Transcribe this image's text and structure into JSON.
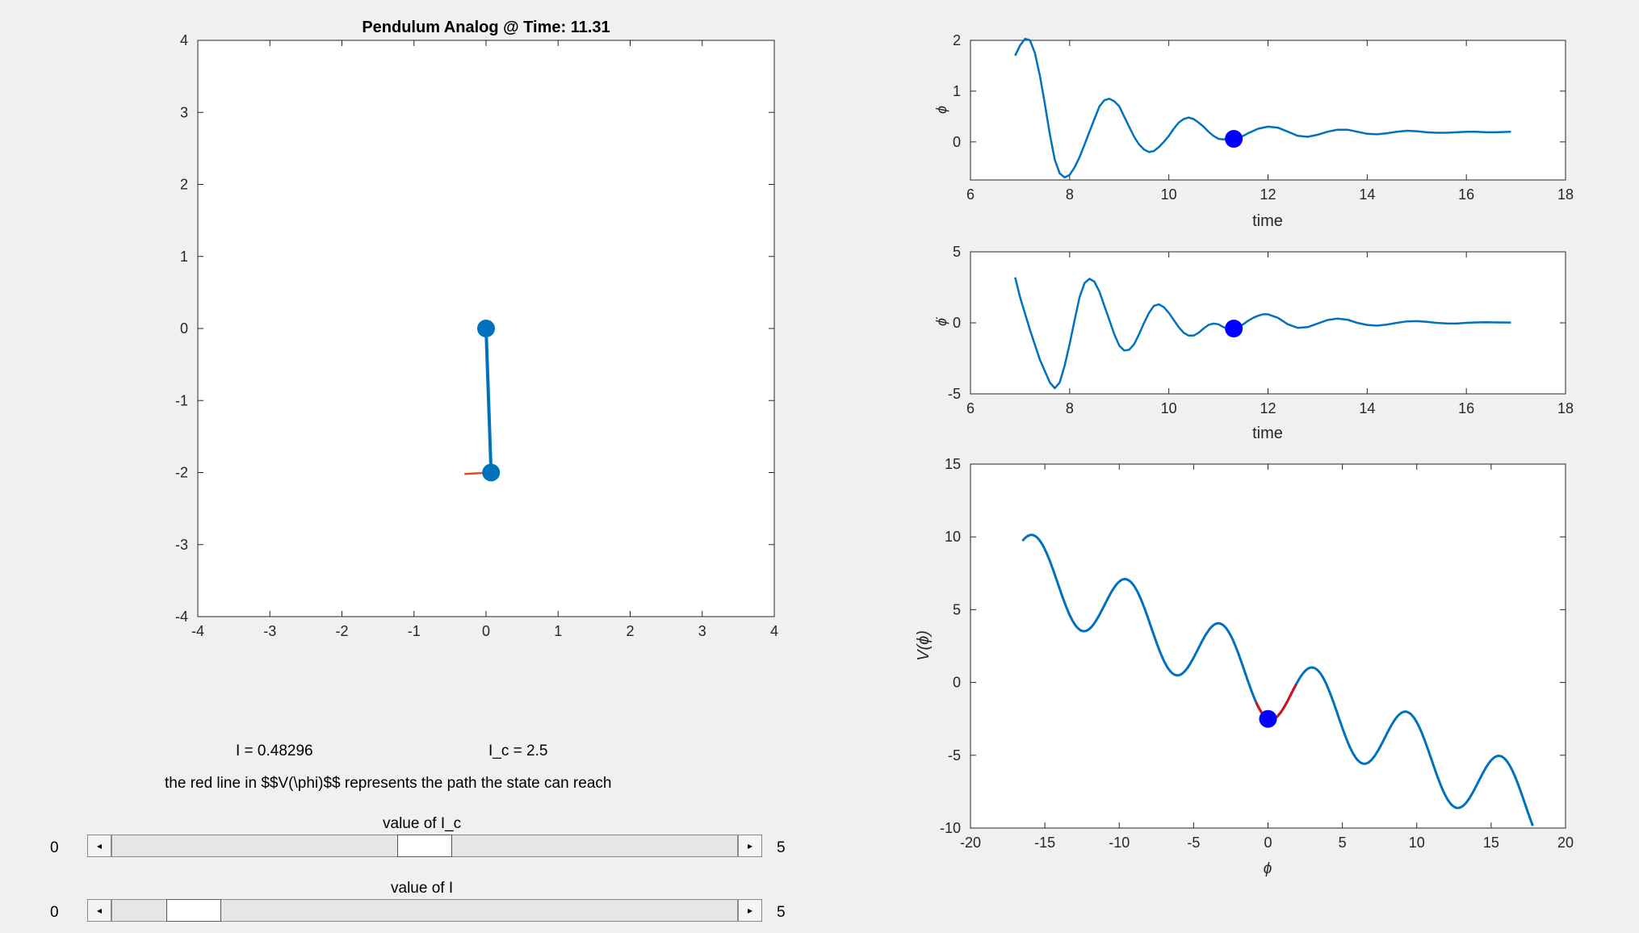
{
  "chart_data": [
    {
      "type": "line",
      "title": "Pendulum Analog @ Time: 11.31",
      "xlabel": "",
      "ylabel": "",
      "xlim": [
        -4,
        4
      ],
      "ylim": [
        -4,
        4
      ],
      "xticks": [
        -4,
        -3,
        -2,
        -1,
        0,
        1,
        2,
        3,
        4
      ],
      "yticks": [
        -4,
        -3,
        -2,
        -1,
        0,
        1,
        2,
        3,
        4
      ],
      "pivot": [
        0,
        0
      ],
      "bob": [
        0.07,
        -2.0
      ],
      "force_line": [
        [
          -0.3,
          -2.02
        ],
        [
          0.07,
          -2.0
        ]
      ],
      "colors": {
        "rod": "#0072bd",
        "force": "#d95319"
      }
    },
    {
      "type": "line",
      "xlabel": "time",
      "ylabel": "ϕ",
      "xlim": [
        6,
        18
      ],
      "ylim": [
        -0.75,
        2
      ],
      "xticks": [
        6,
        8,
        10,
        12,
        14,
        16,
        18
      ],
      "yticks": [
        0,
        1,
        2
      ],
      "series": [
        {
          "x": [
            6.9,
            7.0,
            7.1,
            7.2,
            7.3,
            7.4,
            7.5,
            7.6,
            7.7,
            7.8,
            7.9,
            8.0,
            8.1,
            8.2,
            8.3,
            8.4,
            8.5,
            8.6,
            8.7,
            8.8,
            8.9,
            9.0,
            9.1,
            9.2,
            9.3,
            9.4,
            9.5,
            9.6,
            9.7,
            9.8,
            9.9,
            10.0,
            10.1,
            10.2,
            10.3,
            10.4,
            10.5,
            10.6,
            10.7,
            10.8,
            10.9,
            11.0,
            11.1,
            11.2,
            11.3,
            11.4,
            11.5,
            11.6,
            11.8,
            12.0,
            12.2,
            12.4,
            12.6,
            12.8,
            13.0,
            13.2,
            13.4,
            13.6,
            13.8,
            14.0,
            14.2,
            14.4,
            14.6,
            14.8,
            15.0,
            15.2,
            15.4,
            15.6,
            15.8,
            16.0,
            16.2,
            16.4,
            16.6,
            16.9
          ],
          "values": [
            1.7,
            1.9,
            2.03,
            2.0,
            1.75,
            1.3,
            0.75,
            0.15,
            -0.35,
            -0.62,
            -0.7,
            -0.65,
            -0.5,
            -0.3,
            -0.05,
            0.2,
            0.45,
            0.7,
            0.82,
            0.85,
            0.8,
            0.7,
            0.5,
            0.3,
            0.1,
            -0.05,
            -0.15,
            -0.2,
            -0.18,
            -0.1,
            0.0,
            0.12,
            0.26,
            0.38,
            0.45,
            0.48,
            0.45,
            0.38,
            0.3,
            0.2,
            0.12,
            0.06,
            0.05,
            0.06,
            0.06,
            0.08,
            0.12,
            0.17,
            0.26,
            0.3,
            0.28,
            0.2,
            0.12,
            0.1,
            0.14,
            0.2,
            0.24,
            0.24,
            0.2,
            0.16,
            0.15,
            0.17,
            0.2,
            0.22,
            0.21,
            0.19,
            0.18,
            0.18,
            0.19,
            0.2,
            0.2,
            0.19,
            0.19,
            0.2
          ],
          "color": "#0072bd"
        }
      ],
      "marker": {
        "x": 11.31,
        "y": 0.06,
        "color": "#0000ff"
      }
    },
    {
      "type": "line",
      "xlabel": "time",
      "ylabel": "ϕ̇",
      "xlim": [
        6,
        18
      ],
      "ylim": [
        -5,
        5
      ],
      "xticks": [
        6,
        8,
        10,
        12,
        14,
        16,
        18
      ],
      "yticks": [
        -5,
        0,
        5
      ],
      "series": [
        {
          "x": [
            6.9,
            7.0,
            7.2,
            7.4,
            7.6,
            7.7,
            7.8,
            7.9,
            8.0,
            8.1,
            8.2,
            8.3,
            8.4,
            8.5,
            8.6,
            8.7,
            8.8,
            8.9,
            9.0,
            9.1,
            9.2,
            9.3,
            9.4,
            9.5,
            9.6,
            9.7,
            9.8,
            9.9,
            10.0,
            10.1,
            10.2,
            10.3,
            10.4,
            10.5,
            10.6,
            10.7,
            10.8,
            10.9,
            11.0,
            11.1,
            11.2,
            11.3,
            11.4,
            11.5,
            11.6,
            11.7,
            11.8,
            11.9,
            12.0,
            12.2,
            12.4,
            12.6,
            12.8,
            13.0,
            13.2,
            13.4,
            13.6,
            13.8,
            14.0,
            14.2,
            14.4,
            14.6,
            14.8,
            15.0,
            15.2,
            15.4,
            15.6,
            15.8,
            16.0,
            16.2,
            16.4,
            16.6,
            16.9
          ],
          "values": [
            3.2,
            1.8,
            -0.5,
            -2.6,
            -4.2,
            -4.6,
            -4.2,
            -3.0,
            -1.5,
            0.2,
            1.8,
            2.8,
            3.1,
            2.9,
            2.2,
            1.2,
            0.2,
            -0.8,
            -1.6,
            -1.95,
            -1.9,
            -1.5,
            -0.8,
            0.0,
            0.7,
            1.2,
            1.3,
            1.1,
            0.7,
            0.2,
            -0.3,
            -0.7,
            -0.9,
            -0.9,
            -0.7,
            -0.4,
            -0.15,
            -0.05,
            -0.1,
            -0.3,
            -0.4,
            -0.4,
            -0.3,
            -0.1,
            0.15,
            0.35,
            0.5,
            0.6,
            0.6,
            0.35,
            -0.1,
            -0.35,
            -0.3,
            -0.05,
            0.2,
            0.3,
            0.22,
            0.0,
            -0.15,
            -0.2,
            -0.12,
            0.0,
            0.1,
            0.12,
            0.07,
            0.0,
            -0.04,
            -0.05,
            0.0,
            0.03,
            0.04,
            0.03,
            0.02
          ],
          "color": "#0072bd"
        }
      ],
      "marker": {
        "x": 11.31,
        "y": -0.4,
        "color": "#0000ff"
      }
    },
    {
      "type": "line",
      "xlabel": "ϕ",
      "ylabel": "V(ϕ)",
      "xlim": [
        -20,
        20
      ],
      "ylim": [
        -10,
        15
      ],
      "xticks": [
        -20,
        -15,
        -10,
        -5,
        0,
        5,
        10,
        15,
        20
      ],
      "yticks": [
        -10,
        -5,
        0,
        5,
        10,
        15
      ],
      "potential": {
        "amplitude": 2.5,
        "slope": -0.483,
        "x_start": -16.5,
        "x_end": 17.8
      },
      "reachable_path": {
        "x": [
          -0.8,
          1.9
        ],
        "color": "#d0111b"
      },
      "series": [
        {
          "color": "#0072bd"
        }
      ],
      "marker": {
        "x": 0.0,
        "y": -2.5,
        "color": "#0000ff"
      }
    }
  ],
  "labels": {
    "I_value": "I = 0.48296",
    "Ic_value": "I_c = 2.5",
    "note": "the red line in $$V(\\phi)$$ represents the path the state can reach"
  },
  "sliders": [
    {
      "label": "value of I_c",
      "min": "0",
      "max": "5",
      "value": 2.5,
      "range": [
        0,
        5
      ]
    },
    {
      "label": "value of I",
      "min": "0",
      "max": "5",
      "value": 0.48,
      "range": [
        0,
        5
      ]
    }
  ],
  "icons": {
    "left_arrow": "◂",
    "right_arrow": "▸"
  }
}
